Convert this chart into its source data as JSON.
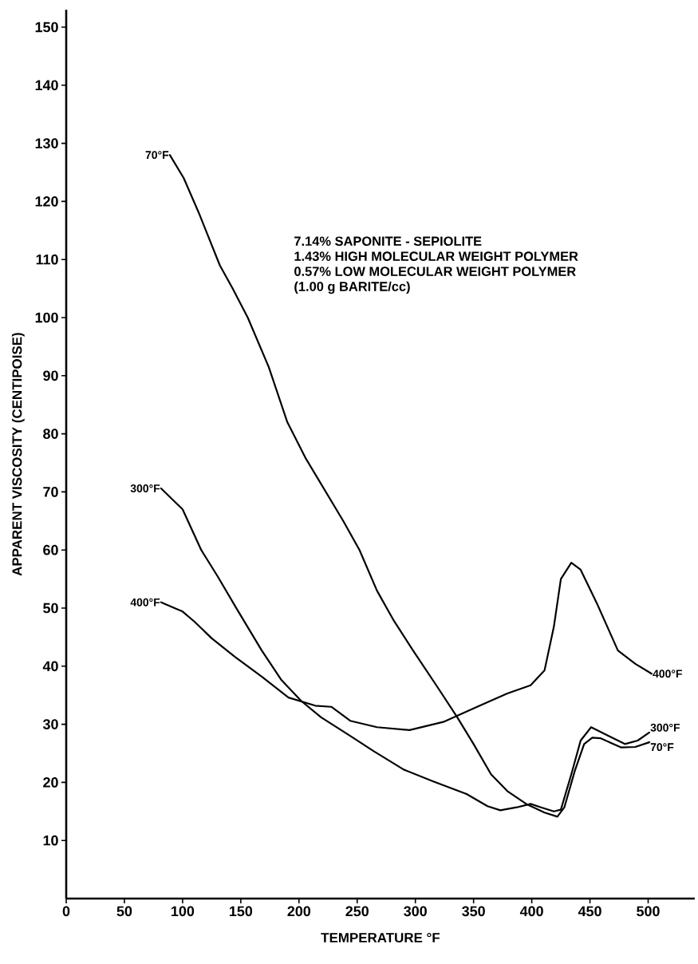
{
  "chart_data": {
    "type": "line",
    "xlabel": "TEMPERATURE °F",
    "ylabel": "APPARENT VISCOSITY (CENTIPOISE)",
    "annotations": [
      "7.14% SAPONITE - SEPIOLITE",
      "1.43% HIGH MOLECULAR WEIGHT POLYMER",
      "0.57% LOW MOLECULAR WEIGHT POLYMER",
      "(1.00 g BARITE/cc)"
    ],
    "xlim": [
      0,
      540
    ],
    "ylim": [
      0,
      153
    ],
    "xticks": [
      0,
      50,
      100,
      150,
      200,
      250,
      300,
      350,
      400,
      450,
      500
    ],
    "yticks": [
      10,
      20,
      30,
      40,
      50,
      60,
      70,
      80,
      90,
      100,
      110,
      120,
      130,
      140,
      150
    ],
    "marker": "none",
    "line_style": "solid",
    "grid": false,
    "series": [
      {
        "name": "70°F",
        "color": "#000000",
        "x": [
          89,
          101,
          114,
          132,
          143,
          156,
          174,
          190,
          206,
          238,
          252,
          267,
          281,
          298,
          319,
          336,
          350,
          365,
          379,
          396,
          411,
          422,
          428,
          437,
          445,
          452,
          459,
          477,
          489,
          501
        ],
        "values": [
          128,
          124,
          118,
          109,
          105,
          100,
          91.5,
          82,
          75.7,
          65,
          60,
          53,
          48,
          42.7,
          36.4,
          31.2,
          26.6,
          21.4,
          18.5,
          16.2,
          14.8,
          14.1,
          15.7,
          22,
          26.6,
          27.7,
          27.6,
          26,
          26.1,
          26.9
        ]
      },
      {
        "name": "300°F",
        "color": "#000000",
        "x": [
          81.5,
          100,
          116,
          130,
          147,
          168,
          185,
          202,
          219,
          244,
          264,
          290,
          315,
          344,
          362,
          373,
          387,
          399,
          408,
          419,
          425,
          434,
          442,
          451,
          463,
          480,
          491,
          501
        ],
        "values": [
          70.6,
          67,
          60,
          55.5,
          49.7,
          42.7,
          37.6,
          34,
          31.2,
          28,
          25.4,
          22.2,
          20.2,
          18,
          15.9,
          15.2,
          15.7,
          16.3,
          15.7,
          15,
          15.3,
          21.4,
          27.2,
          29.5,
          28.3,
          26.6,
          27.2,
          28.6
        ]
      },
      {
        "name": "400°F",
        "color": "#000000",
        "x": [
          81.5,
          100,
          110,
          125,
          145,
          168,
          191,
          214,
          228,
          244,
          267,
          295,
          324,
          353,
          379,
          399,
          411,
          419,
          425,
          434,
          442,
          456,
          474,
          489,
          503
        ],
        "values": [
          51,
          49.4,
          47.7,
          44.8,
          41.6,
          38.2,
          34.6,
          33.2,
          33,
          30.6,
          29.5,
          29,
          30.4,
          33,
          35.3,
          36.7,
          39.3,
          46.8,
          55,
          57.8,
          56.6,
          50.8,
          42.7,
          40.4,
          38.7
        ]
      }
    ]
  }
}
